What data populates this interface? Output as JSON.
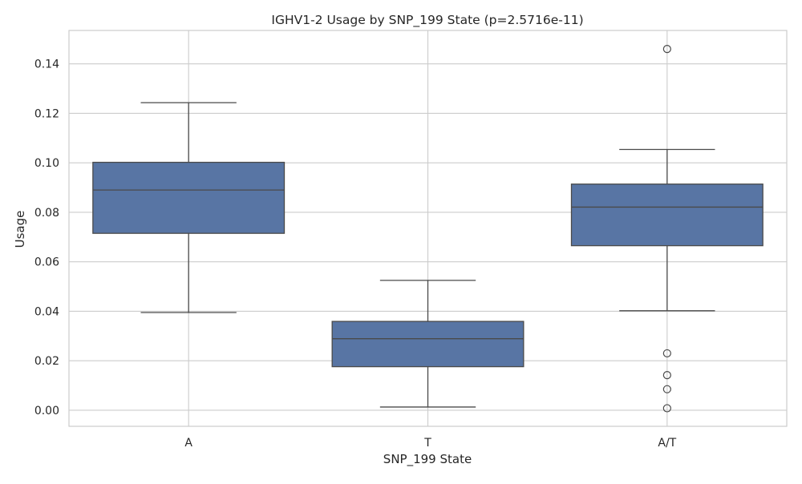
{
  "chart_data": {
    "type": "box",
    "title": "IGHV1-2 Usage by SNP_199 State (p=2.5716e-11)",
    "xlabel": "SNP_199 State",
    "ylabel": "Usage",
    "categories": [
      "A",
      "T",
      "A/T"
    ],
    "ylim": [
      -0.0065,
      0.1535
    ],
    "yticks": [
      "0.00",
      "0.02",
      "0.04",
      "0.06",
      "0.08",
      "0.10",
      "0.12",
      "0.14"
    ],
    "grid": true,
    "box_color": "#5875a4",
    "line_color": "#4a4a4a",
    "grid_color": "#cccccc",
    "boxes": [
      {
        "category": "A",
        "whisker_low": 0.0395,
        "q1": 0.0715,
        "median": 0.089,
        "q3": 0.1002,
        "whisker_high": 0.1243,
        "outliers": []
      },
      {
        "category": "T",
        "whisker_low": 0.0013,
        "q1": 0.0176,
        "median": 0.0289,
        "q3": 0.0359,
        "whisker_high": 0.0525,
        "outliers": []
      },
      {
        "category": "A/T",
        "whisker_low": 0.0402,
        "q1": 0.0665,
        "median": 0.0821,
        "q3": 0.0914,
        "whisker_high": 0.1054,
        "outliers": [
          0.146,
          0.023,
          0.0142,
          0.0085,
          0.0008
        ]
      }
    ]
  }
}
